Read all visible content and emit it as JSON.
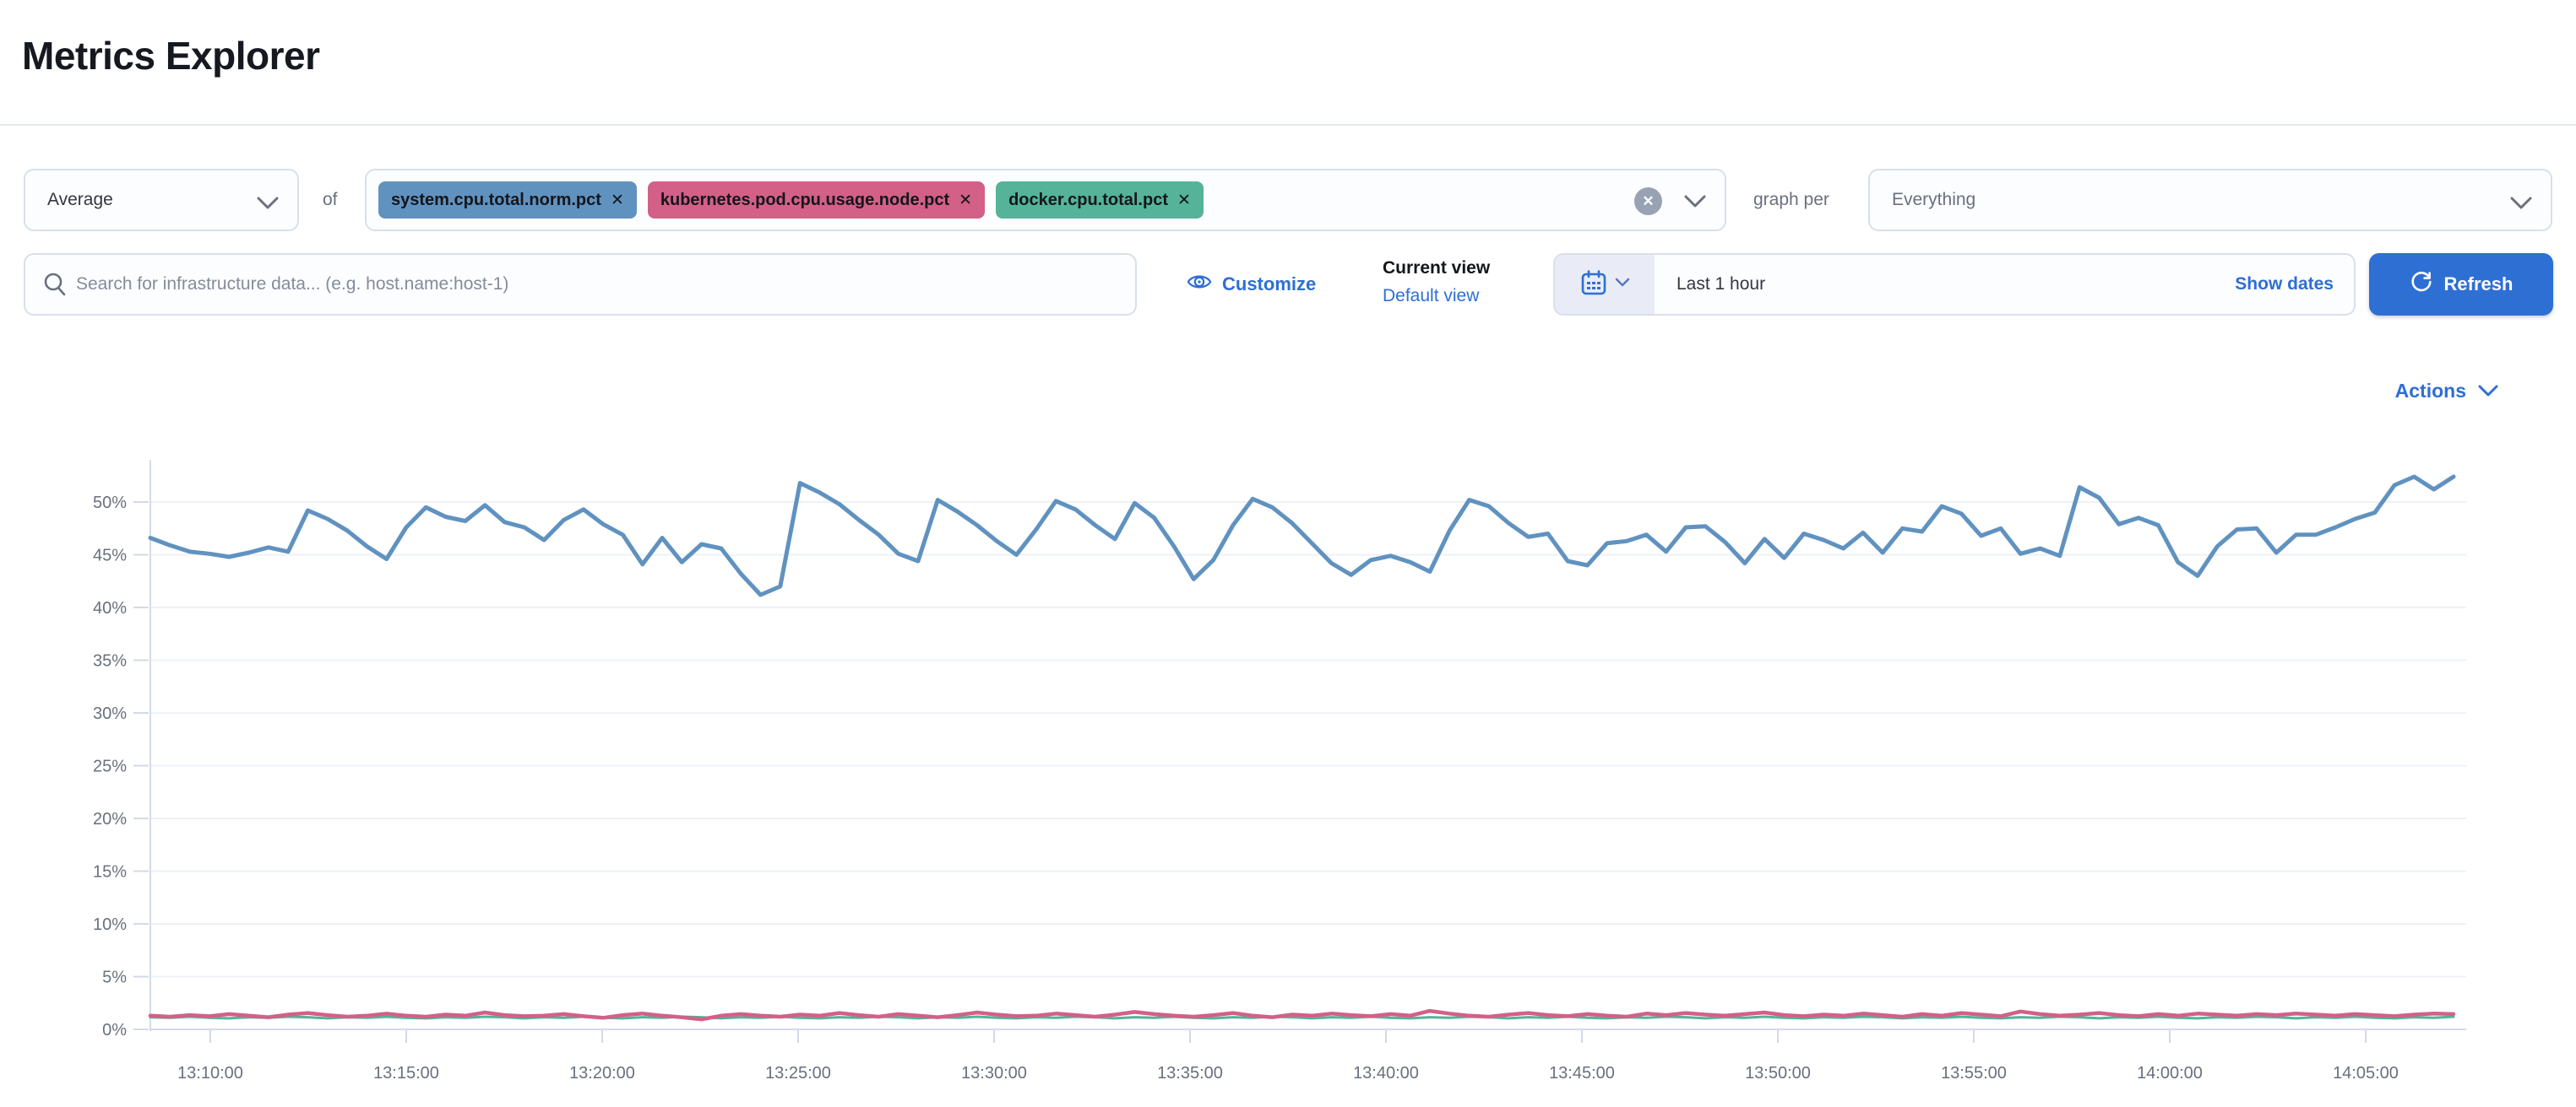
{
  "page_title": "Metrics Explorer",
  "toolbar": {
    "aggregation": {
      "value": "Average"
    },
    "of_label": "of",
    "metrics": [
      {
        "label": "system.cpu.total.norm.pct",
        "color": "#6092C0",
        "remove_icon": "x"
      },
      {
        "label": "kubernetes.pod.cpu.usage.node.pct",
        "color": "#D36086",
        "remove_icon": "x"
      },
      {
        "label": "docker.cpu.total.pct",
        "color": "#54B399",
        "remove_icon": "x"
      }
    ],
    "clear_all_icon": "x-in-circle",
    "graph_per_label": "graph per",
    "group_by": {
      "value": "Everything"
    }
  },
  "search": {
    "placeholder": "Search for infrastructure data... (e.g. host.name:host-1)"
  },
  "view_controls": {
    "customize_label": "Customize",
    "current_view_label": "Current view",
    "default_view_label": "Default view"
  },
  "time_picker": {
    "value": "Last 1 hour",
    "show_dates_label": "Show dates",
    "refresh_label": "Refresh"
  },
  "actions_label": "Actions",
  "colors": {
    "link_blue": "#2e6ed3",
    "button_blue": "#2e6fd4",
    "axis_line": "#d3dae6",
    "grid_line": "#eef1f6",
    "tick_text": "#69707d",
    "series_blue": "#6092C0",
    "series_pink": "#D36086",
    "series_teal": "#54B399"
  },
  "chart_data": {
    "type": "line",
    "title": "",
    "xlabel": "",
    "ylabel": "",
    "grid": true,
    "legend": "none",
    "y_unit": "%",
    "ylim": [
      0,
      55
    ],
    "y_ticks": [
      0,
      5,
      10,
      15,
      20,
      25,
      30,
      35,
      40,
      45,
      50
    ],
    "x_tick_labels": [
      "13:10:00",
      "13:15:00",
      "13:20:00",
      "13:25:00",
      "13:30:00",
      "13:35:00",
      "13:40:00",
      "13:45:00",
      "13:50:00",
      "13:55:00",
      "14:00:00",
      "14:05:00"
    ],
    "x": {
      "start": "13:08:30",
      "interval_seconds": 30,
      "end": "14:07:00"
    },
    "series": [
      {
        "name": "system.cpu.total.norm.pct",
        "color": "#6092C0",
        "values": [
          46.6,
          45.9,
          45.3,
          45.1,
          44.8,
          45.2,
          45.7,
          45.3,
          49.2,
          48.4,
          47.3,
          45.8,
          44.6,
          47.6,
          49.5,
          48.6,
          48.2,
          49.7,
          48.1,
          47.6,
          46.4,
          48.3,
          49.3,
          47.9,
          46.9,
          44.1,
          46.6,
          44.3,
          46.0,
          45.6,
          43.2,
          41.2,
          42.0,
          51.8,
          50.9,
          49.8,
          48.3,
          46.9,
          45.1,
          44.4,
          50.2,
          49.1,
          47.8,
          46.3,
          45.0,
          47.4,
          50.1,
          49.3,
          47.8,
          46.5,
          49.9,
          48.5,
          45.8,
          42.7,
          44.5,
          47.8,
          50.3,
          49.5,
          48.0,
          46.1,
          44.2,
          43.1,
          44.5,
          44.9,
          44.3,
          43.4,
          47.3,
          50.2,
          49.6,
          48.0,
          46.7,
          47.0,
          44.4,
          44.0,
          46.1,
          46.3,
          46.9,
          45.3,
          47.6,
          47.7,
          46.2,
          44.2,
          46.5,
          44.7,
          47.0,
          46.4,
          45.6,
          47.1,
          45.2,
          47.5,
          47.2,
          49.6,
          48.9,
          46.8,
          47.5,
          45.1,
          45.6,
          44.9,
          51.4,
          50.4,
          47.9,
          48.5,
          47.8,
          44.3,
          43.0,
          45.8,
          47.4,
          47.5,
          45.2,
          46.9,
          46.9,
          47.6,
          48.4,
          49.0,
          51.6,
          52.4,
          51.2,
          52.4
        ]
      },
      {
        "name": "kubernetes.pod.cpu.usage.node.pct",
        "color": "#D36086",
        "values": [
          1.3,
          1.2,
          1.35,
          1.25,
          1.45,
          1.3,
          1.15,
          1.4,
          1.55,
          1.35,
          1.2,
          1.3,
          1.5,
          1.3,
          1.2,
          1.4,
          1.3,
          1.6,
          1.35,
          1.25,
          1.3,
          1.45,
          1.25,
          1.1,
          1.35,
          1.5,
          1.3,
          1.15,
          0.95,
          1.3,
          1.45,
          1.3,
          1.2,
          1.4,
          1.3,
          1.55,
          1.35,
          1.2,
          1.45,
          1.3,
          1.15,
          1.35,
          1.6,
          1.4,
          1.25,
          1.3,
          1.5,
          1.35,
          1.2,
          1.4,
          1.65,
          1.45,
          1.3,
          1.2,
          1.35,
          1.55,
          1.3,
          1.15,
          1.4,
          1.3,
          1.5,
          1.35,
          1.25,
          1.45,
          1.3,
          1.75,
          1.5,
          1.3,
          1.2,
          1.4,
          1.55,
          1.35,
          1.25,
          1.45,
          1.3,
          1.2,
          1.5,
          1.35,
          1.55,
          1.4,
          1.3,
          1.45,
          1.6,
          1.35,
          1.25,
          1.4,
          1.3,
          1.5,
          1.35,
          1.2,
          1.45,
          1.3,
          1.55,
          1.4,
          1.25,
          1.7,
          1.45,
          1.3,
          1.4,
          1.55,
          1.35,
          1.25,
          1.45,
          1.3,
          1.5,
          1.4,
          1.3,
          1.45,
          1.35,
          1.5,
          1.4,
          1.3,
          1.45,
          1.35,
          1.25,
          1.4,
          1.5,
          1.45
        ]
      },
      {
        "name": "docker.cpu.total.pct",
        "color": "#54B399",
        "note": "overlapped beneath pink series",
        "values": [
          1.15,
          1.1,
          1.2,
          1.1,
          1.05,
          1.15,
          1.1,
          1.2,
          1.15,
          1.05,
          1.15,
          1.1,
          1.2,
          1.1,
          1.05,
          1.15,
          1.1,
          1.2,
          1.15,
          1.05,
          1.15,
          1.1,
          1.2,
          1.1,
          1.05,
          1.15,
          1.1,
          1.2,
          1.15,
          1.05,
          1.15,
          1.1,
          1.2,
          1.1,
          1.05,
          1.15,
          1.1,
          1.2,
          1.15,
          1.05,
          1.15,
          1.1,
          1.2,
          1.1,
          1.05,
          1.15,
          1.1,
          1.2,
          1.15,
          1.05,
          1.15,
          1.1,
          1.2,
          1.1,
          1.05,
          1.15,
          1.1,
          1.2,
          1.15,
          1.05,
          1.15,
          1.1,
          1.2,
          1.1,
          1.05,
          1.15,
          1.1,
          1.2,
          1.15,
          1.05,
          1.15,
          1.1,
          1.2,
          1.1,
          1.05,
          1.15,
          1.1,
          1.2,
          1.15,
          1.05,
          1.15,
          1.1,
          1.2,
          1.1,
          1.05,
          1.15,
          1.1,
          1.2,
          1.15,
          1.05,
          1.15,
          1.1,
          1.2,
          1.1,
          1.05,
          1.15,
          1.1,
          1.2,
          1.15,
          1.05,
          1.15,
          1.1,
          1.2,
          1.1,
          1.05,
          1.15,
          1.1,
          1.2,
          1.15,
          1.05,
          1.15,
          1.1,
          1.2,
          1.1,
          1.05,
          1.15,
          1.1,
          1.2
        ]
      }
    ]
  }
}
